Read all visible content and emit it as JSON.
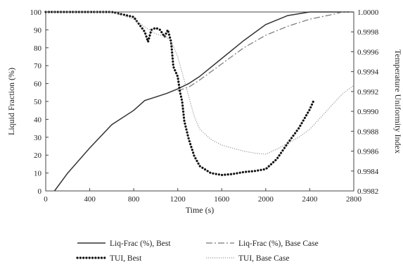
{
  "chart_data": {
    "type": "line",
    "title": "",
    "xlabel": "Time (s)",
    "ylabel": "Liquid Fraction (%)",
    "y2label": "Temperature Uniformity Index",
    "xlim": [
      0,
      2800
    ],
    "ylim": [
      0,
      100
    ],
    "y2lim": [
      0.9982,
      1.0
    ],
    "x_ticks": [
      0,
      400,
      800,
      1200,
      1600,
      2000,
      2400,
      2800
    ],
    "y_ticks": [
      0,
      10,
      20,
      30,
      40,
      50,
      60,
      70,
      80,
      90,
      100
    ],
    "y2_ticks": [
      "0.9982",
      "0.9984",
      "0.9986",
      "0.9988",
      "0.9990",
      "0.9992",
      "0.9994",
      "0.9996",
      "0.9998",
      "1.0000"
    ],
    "grid": false,
    "legend_placement": "bottom",
    "series": [
      {
        "name": "Liq-Frac (%), Best",
        "axis": "left",
        "style": "solid",
        "color": "#333333",
        "points": [
          [
            80,
            0
          ],
          [
            200,
            10
          ],
          [
            400,
            24
          ],
          [
            600,
            37
          ],
          [
            800,
            45
          ],
          [
            900,
            50.5
          ],
          [
            1000,
            52.5
          ],
          [
            1100,
            54.5
          ],
          [
            1200,
            57
          ],
          [
            1300,
            60
          ],
          [
            1400,
            64
          ],
          [
            1600,
            74
          ],
          [
            1800,
            84
          ],
          [
            2000,
            93
          ],
          [
            2200,
            98
          ],
          [
            2400,
            100
          ],
          [
            2800,
            100
          ]
        ]
      },
      {
        "name": "Liq-Frac (%), Base Case",
        "axis": "left",
        "style": "dashdot",
        "color": "#777777",
        "points": [
          [
            1200,
            56
          ],
          [
            1300,
            58
          ],
          [
            1400,
            62
          ],
          [
            1600,
            71
          ],
          [
            1800,
            80
          ],
          [
            2000,
            87
          ],
          [
            2200,
            92
          ],
          [
            2400,
            96
          ],
          [
            2600,
            98.5
          ],
          [
            2700,
            100
          ],
          [
            2800,
            100
          ]
        ]
      },
      {
        "name": "TUI, Best",
        "axis": "right",
        "style": "dotted",
        "color": "#111111",
        "points": [
          [
            0,
            1.0
          ],
          [
            400,
            1.0
          ],
          [
            600,
            1.0
          ],
          [
            800,
            0.99995
          ],
          [
            900,
            0.9998
          ],
          [
            930,
            0.9997
          ],
          [
            960,
            0.99982
          ],
          [
            1000,
            0.99984
          ],
          [
            1040,
            0.99982
          ],
          [
            1080,
            0.99975
          ],
          [
            1110,
            0.99982
          ],
          [
            1140,
            0.9997
          ],
          [
            1160,
            0.99945
          ],
          [
            1180,
            0.9994
          ],
          [
            1200,
            0.99935
          ],
          [
            1220,
            0.9992
          ],
          [
            1240,
            0.9991
          ],
          [
            1260,
            0.9989
          ],
          [
            1300,
            0.99872
          ],
          [
            1350,
            0.99855
          ],
          [
            1400,
            0.99845
          ],
          [
            1500,
            0.99838
          ],
          [
            1600,
            0.99836
          ],
          [
            1700,
            0.99837
          ],
          [
            1800,
            0.99839
          ],
          [
            1900,
            0.9984
          ],
          [
            2000,
            0.99842
          ],
          [
            2100,
            0.99852
          ],
          [
            2200,
            0.99868
          ],
          [
            2300,
            0.99883
          ],
          [
            2400,
            0.99902
          ],
          [
            2440,
            0.99912
          ]
        ]
      },
      {
        "name": "TUI, Base Case",
        "axis": "right",
        "style": "dotted",
        "color": "#999999",
        "points": [
          [
            0,
            1.0
          ],
          [
            600,
            1.0
          ],
          [
            800,
            0.99993
          ],
          [
            900,
            0.99985
          ],
          [
            1000,
            0.99978
          ],
          [
            1100,
            0.99975
          ],
          [
            1150,
            0.99968
          ],
          [
            1200,
            0.99955
          ],
          [
            1250,
            0.99935
          ],
          [
            1300,
            0.99915
          ],
          [
            1350,
            0.99895
          ],
          [
            1400,
            0.99882
          ],
          [
            1500,
            0.99872
          ],
          [
            1600,
            0.99866
          ],
          [
            1700,
            0.99863
          ],
          [
            1800,
            0.9986
          ],
          [
            1900,
            0.99858
          ],
          [
            2000,
            0.99857
          ],
          [
            2100,
            0.99862
          ],
          [
            2200,
            0.99868
          ],
          [
            2300,
            0.99874
          ],
          [
            2400,
            0.99882
          ],
          [
            2500,
            0.99894
          ],
          [
            2600,
            0.99906
          ],
          [
            2700,
            0.99918
          ],
          [
            2800,
            0.99926
          ]
        ]
      }
    ]
  }
}
